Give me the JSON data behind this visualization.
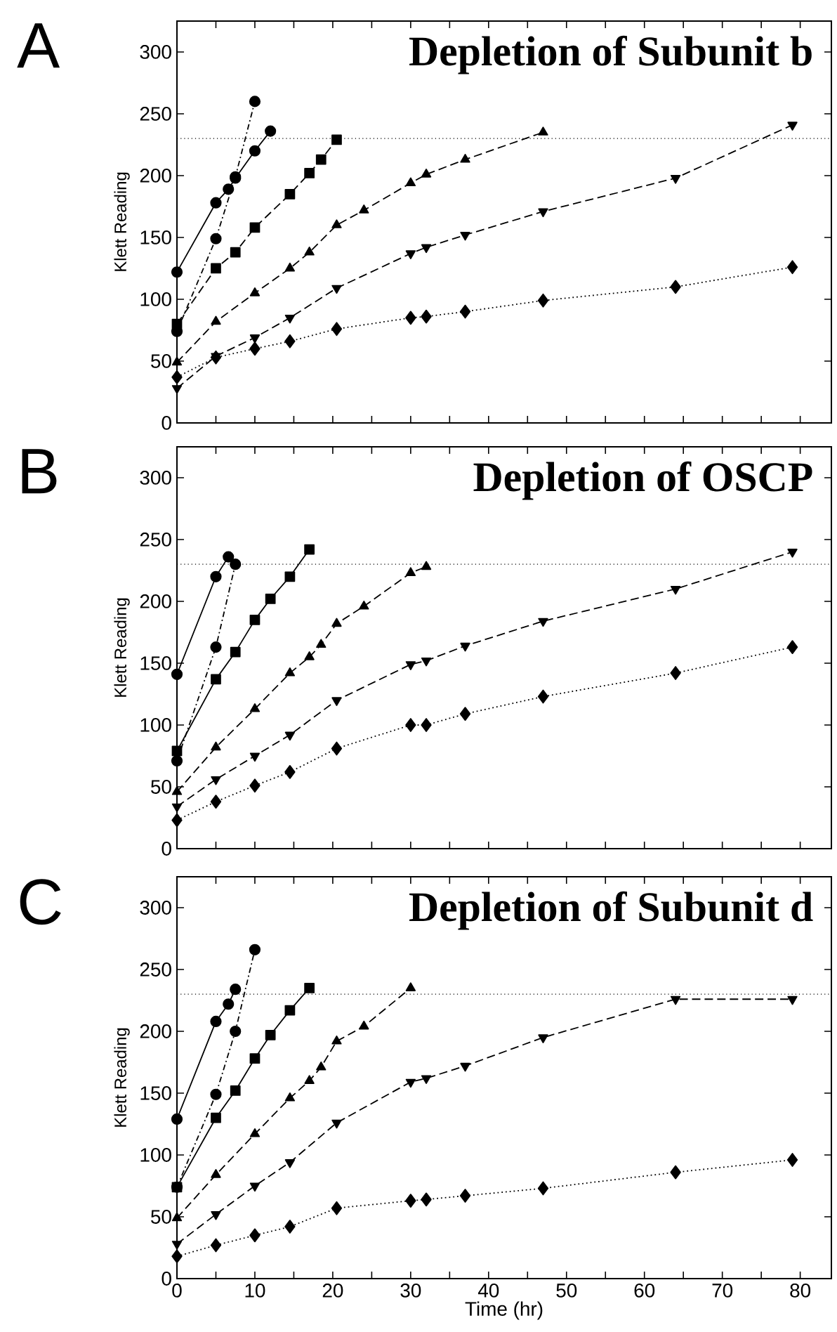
{
  "chart_data": [
    {
      "type": "line",
      "title": "Depletion of Subunit b",
      "ylabel": "Klett Reading",
      "annotations": [
        "A"
      ],
      "xlim": [
        0,
        84
      ],
      "ylim": [
        0,
        325
      ],
      "xticks": [
        0,
        {
          "value": 5,
          "label": null
        },
        10,
        {
          "value": 15,
          "label": null
        },
        20,
        {
          "value": 25,
          "label": null
        },
        30,
        {
          "value": 35,
          "label": null
        },
        40,
        {
          "value": 45,
          "label": null
        },
        50,
        {
          "value": 55,
          "label": null
        },
        60,
        {
          "value": 65,
          "label": null
        },
        70,
        {
          "value": 75,
          "label": null
        },
        80
      ],
      "yticks": [
        0,
        50,
        100,
        150,
        200,
        250,
        300
      ],
      "tick_labels": "y",
      "ref_lines": [
        {
          "axis": "y",
          "value": 230,
          "line_style": "dotted"
        }
      ],
      "series": [
        {
          "color": "#000000",
          "marker": "circle",
          "line_style": "solid",
          "x": [
            0,
            5,
            6.6,
            7.5,
            10,
            12
          ],
          "values": [
            122,
            178,
            189,
            198,
            220,
            236
          ]
        },
        {
          "color": "#000000",
          "marker": "circle",
          "line_style": "dashdot",
          "x": [
            0,
            5,
            7.5,
            10
          ],
          "values": [
            74,
            149,
            199,
            260
          ]
        },
        {
          "color": "#000000",
          "marker": "square",
          "line_style": "dashed",
          "x": [
            0,
            5,
            7.5,
            10,
            14.5,
            17,
            18.5,
            20.5
          ],
          "values": [
            80,
            125,
            138,
            158,
            185,
            202,
            213,
            229
          ]
        },
        {
          "color": "#000000",
          "marker": "triangle",
          "line_style": "dashed",
          "x": [
            0,
            5,
            10,
            14.5,
            17,
            20.5,
            24,
            30,
            32,
            37,
            47
          ],
          "values": [
            49,
            82,
            105,
            125,
            138,
            160,
            172,
            194,
            201,
            213,
            235
          ]
        },
        {
          "color": "#000000",
          "marker": "triangle_down",
          "line_style": "dashed",
          "x": [
            0,
            5,
            10,
            14.5,
            20.5,
            30,
            32,
            37,
            47,
            64,
            79
          ],
          "values": [
            28,
            54,
            69,
            85,
            109,
            137,
            142,
            152,
            171,
            198,
            241
          ]
        },
        {
          "color": "#000000",
          "marker": "diamond",
          "line_style": "dotted",
          "x": [
            0,
            5,
            10,
            14.5,
            20.5,
            30,
            32,
            37,
            47,
            64,
            79
          ],
          "values": [
            37,
            53,
            60,
            66,
            76,
            85,
            86,
            90,
            99,
            110,
            126
          ]
        }
      ]
    },
    {
      "type": "line",
      "title": "Depletion of OSCP",
      "ylabel": "Klett Reading",
      "annotations": [
        "B"
      ],
      "xlim": [
        0,
        84
      ],
      "ylim": [
        0,
        325
      ],
      "xticks": [
        0,
        {
          "value": 5,
          "label": null
        },
        10,
        {
          "value": 15,
          "label": null
        },
        20,
        {
          "value": 25,
          "label": null
        },
        30,
        {
          "value": 35,
          "label": null
        },
        40,
        {
          "value": 45,
          "label": null
        },
        50,
        {
          "value": 55,
          "label": null
        },
        60,
        {
          "value": 65,
          "label": null
        },
        70,
        {
          "value": 75,
          "label": null
        },
        80
      ],
      "yticks": [
        0,
        50,
        100,
        150,
        200,
        250,
        300
      ],
      "tick_labels": "y",
      "ref_lines": [
        {
          "axis": "y",
          "value": 230,
          "line_style": "dotted"
        }
      ],
      "series": [
        {
          "color": "#000000",
          "marker": "circle",
          "line_style": "solid",
          "x": [
            0,
            5,
            6.6
          ],
          "values": [
            141,
            220,
            236
          ]
        },
        {
          "color": "#000000",
          "marker": "circle",
          "line_style": "dashdot",
          "x": [
            0,
            5,
            7.5
          ],
          "values": [
            71,
            163,
            230
          ]
        },
        {
          "color": "#000000",
          "marker": "square",
          "line_style": "solid",
          "x": [
            0,
            5,
            7.5,
            10,
            12,
            14.5,
            17
          ],
          "values": [
            79,
            137,
            159,
            185,
            202,
            220,
            242
          ]
        },
        {
          "color": "#000000",
          "marker": "triangle",
          "line_style": "dashed",
          "x": [
            0,
            5,
            10,
            14.5,
            17,
            18.5,
            20.5,
            24,
            30,
            32
          ],
          "values": [
            46,
            82,
            113,
            142,
            155,
            165,
            182,
            196,
            223,
            228
          ]
        },
        {
          "color": "#000000",
          "marker": "triangle_down",
          "line_style": "dashed",
          "x": [
            0,
            5,
            10,
            14.5,
            20.5,
            30,
            32,
            37,
            47,
            64,
            79
          ],
          "values": [
            34,
            56,
            75,
            92,
            120,
            149,
            152,
            164,
            184,
            210,
            240
          ]
        },
        {
          "color": "#000000",
          "marker": "diamond",
          "line_style": "dotted",
          "x": [
            0,
            5,
            10,
            14.5,
            20.5,
            30,
            32,
            37,
            47,
            64,
            79
          ],
          "values": [
            23,
            38,
            51,
            62,
            81,
            100,
            100,
            109,
            123,
            142,
            163
          ]
        }
      ]
    },
    {
      "type": "line",
      "title": "Depletion of Subunit d",
      "xlabel": "Time (hr)",
      "ylabel": "Klett Reading",
      "annotations": [
        "C"
      ],
      "xlim": [
        0,
        84
      ],
      "ylim": [
        0,
        325
      ],
      "xticks": [
        0,
        {
          "value": 5,
          "label": null
        },
        10,
        {
          "value": 15,
          "label": null
        },
        20,
        {
          "value": 25,
          "label": null
        },
        30,
        {
          "value": 35,
          "label": null
        },
        40,
        {
          "value": 45,
          "label": null
        },
        50,
        {
          "value": 55,
          "label": null
        },
        60,
        {
          "value": 65,
          "label": null
        },
        70,
        {
          "value": 75,
          "label": null
        },
        80
      ],
      "yticks": [
        0,
        50,
        100,
        150,
        200,
        250,
        300
      ],
      "ref_lines": [
        {
          "axis": "y",
          "value": 230,
          "line_style": "dotted"
        }
      ],
      "series": [
        {
          "color": "#000000",
          "marker": "circle",
          "line_style": "solid",
          "x": [
            0,
            5,
            6.6,
            7.5
          ],
          "values": [
            129,
            208,
            222,
            234
          ]
        },
        {
          "color": "#000000",
          "marker": "circle",
          "line_style": "dashdot",
          "x": [
            0,
            5,
            7.5,
            10
          ],
          "values": [
            74,
            149,
            200,
            266
          ]
        },
        {
          "color": "#000000",
          "marker": "square",
          "line_style": "solid",
          "x": [
            0,
            5,
            7.5,
            10,
            12,
            14.5,
            17
          ],
          "values": [
            74,
            130,
            152,
            178,
            197,
            217,
            235
          ]
        },
        {
          "color": "#000000",
          "marker": "triangle",
          "line_style": "dashed",
          "x": [
            0,
            5,
            10,
            14.5,
            17,
            18.5,
            20.5,
            24,
            30
          ],
          "values": [
            49,
            84,
            117,
            146,
            160,
            171,
            192,
            204,
            235
          ]
        },
        {
          "color": "#000000",
          "marker": "triangle_down",
          "line_style": "dashed",
          "x": [
            0,
            5,
            10,
            14.5,
            20.5,
            30,
            32,
            37,
            47,
            64,
            79
          ],
          "values": [
            28,
            52,
            75,
            94,
            126,
            159,
            162,
            172,
            195,
            226,
            226
          ]
        },
        {
          "color": "#000000",
          "marker": "diamond",
          "line_style": "dotted",
          "x": [
            0,
            5,
            10,
            14.5,
            20.5,
            30,
            32,
            37,
            47,
            64,
            79
          ],
          "values": [
            18,
            27,
            35,
            42,
            57,
            63,
            64,
            67,
            73,
            86,
            96
          ]
        }
      ]
    }
  ]
}
